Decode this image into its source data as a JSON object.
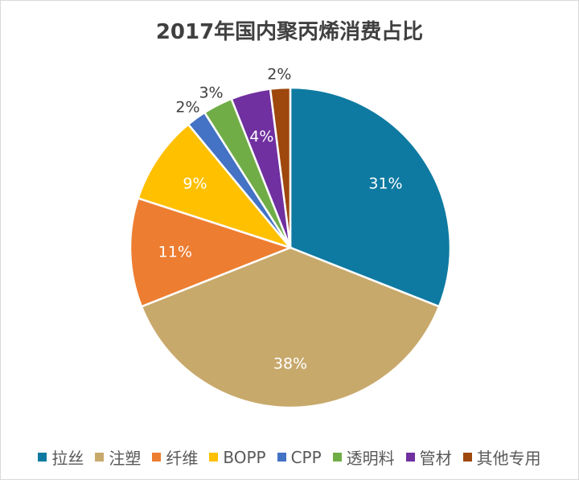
{
  "chart_data": {
    "type": "pie",
    "title": "2017年国内聚丙烯消费占比",
    "start": "top",
    "direction": "clockwise",
    "legend_position": "bottom",
    "slices": [
      {
        "name": "拉丝",
        "value": 31,
        "label": "31%",
        "color": "#0e7aa1",
        "label_inside": true
      },
      {
        "name": "注塑",
        "value": 38,
        "label": "38%",
        "color": "#c8a96c",
        "label_inside": true
      },
      {
        "name": "纤维",
        "value": 11,
        "label": "11%",
        "color": "#ed7d31",
        "label_inside": true
      },
      {
        "name": "BOPP",
        "value": 9,
        "label": "9%",
        "color": "#ffc000",
        "label_inside": true
      },
      {
        "name": "CPP",
        "value": 2,
        "label": "2%",
        "color": "#4472c4",
        "label_inside": false
      },
      {
        "name": "透明料",
        "value": 3,
        "label": "3%",
        "color": "#70ad47",
        "label_inside": false
      },
      {
        "name": "管材",
        "value": 4,
        "label": "4%",
        "color": "#7030a0",
        "label_inside": true
      },
      {
        "name": "其他专用",
        "value": 2,
        "label": "2%",
        "color": "#9e480e",
        "label_inside": false
      }
    ]
  }
}
